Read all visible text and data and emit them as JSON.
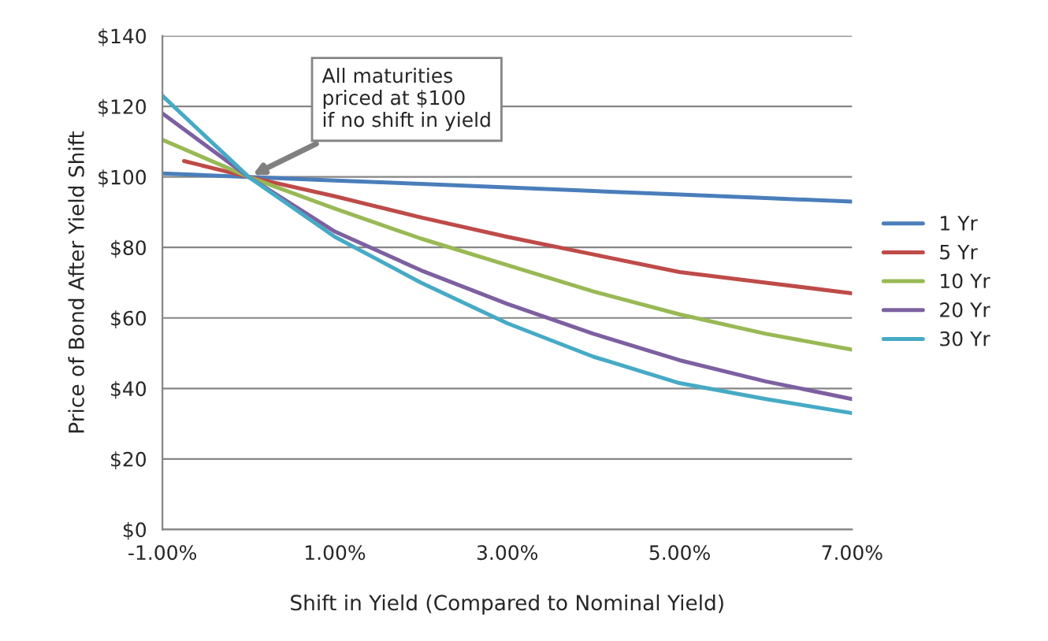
{
  "chart_data": {
    "type": "line",
    "xlabel": "Shift in Yield (Compared to Nominal Yield)",
    "ylabel": "Price of Bond After Yield Shift",
    "x": [
      -1,
      0,
      1,
      2,
      3,
      4,
      5,
      6,
      7
    ],
    "series": [
      {
        "name": "1 Yr",
        "color": "#4a7ebb",
        "values": [
          101,
          100,
          99,
          98,
          97,
          96,
          95,
          94,
          93
        ]
      },
      {
        "name": "5 Yr",
        "color": "#be4b48",
        "x": [
          -0.75,
          0,
          1,
          2,
          3,
          4,
          5,
          6,
          7
        ],
        "values": [
          104.5,
          100,
          94.5,
          88.5,
          83,
          78,
          73,
          70,
          67
        ]
      },
      {
        "name": "10 Yr",
        "color": "#98b954",
        "values": [
          110.5,
          100,
          91,
          82.5,
          75,
          67.5,
          61,
          55.5,
          51
        ]
      },
      {
        "name": "20 Yr",
        "color": "#7d60a0",
        "values": [
          118,
          100,
          84.5,
          73.5,
          64,
          55.5,
          48,
          42,
          37
        ]
      },
      {
        "name": "30 Yr",
        "color": "#46aac5",
        "values": [
          123,
          100,
          83,
          70,
          58.5,
          49,
          41.5,
          37,
          33
        ]
      }
    ],
    "xlim": [
      -1,
      7
    ],
    "xticks": [
      {
        "value": -1,
        "label": "-1.00%"
      },
      {
        "value": 1,
        "label": "1.00%"
      },
      {
        "value": 3,
        "label": "3.00%"
      },
      {
        "value": 5,
        "label": "5.00%"
      },
      {
        "value": 7,
        "label": "7.00%"
      }
    ],
    "ylim": [
      0,
      140
    ],
    "yticks": [
      {
        "value": 0,
        "label": "$0"
      },
      {
        "value": 20,
        "label": "$20"
      },
      {
        "value": 40,
        "label": "$40"
      },
      {
        "value": 60,
        "label": "$60"
      },
      {
        "value": 80,
        "label": "$80"
      },
      {
        "value": 100,
        "label": "$100"
      },
      {
        "value": 120,
        "label": "$120"
      },
      {
        "value": 140,
        "label": "$140"
      }
    ],
    "grid": "y",
    "legend": "right",
    "marker": "none",
    "line_style": "solid",
    "annotations": [
      {
        "text": "All maturities\npriced at $100\nif no shift in yield",
        "x": 0,
        "y": 100
      }
    ]
  }
}
